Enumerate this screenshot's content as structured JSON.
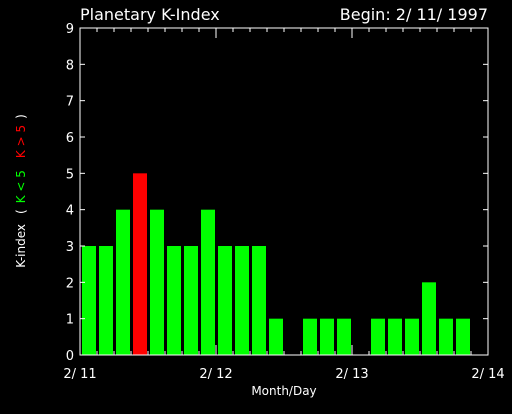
{
  "chart_data": {
    "type": "bar",
    "title": "Planetary K-Index",
    "subtitle": "Begin: 2/ 11/ 1997",
    "xlabel": "Month/Day",
    "ylabel": "K-index",
    "legend": {
      "open": "(",
      "green_label": "K < 5",
      "red_label": "K > 5",
      "close": ")"
    },
    "ylim": [
      0,
      9
    ],
    "yticks": [
      "0",
      "1",
      "2",
      "3",
      "4",
      "5",
      "6",
      "7",
      "8",
      "9"
    ],
    "xlim": [
      0,
      24
    ],
    "xticks": [
      {
        "label": "2/ 11",
        "pos": 0
      },
      {
        "label": "2/ 12",
        "pos": 8
      },
      {
        "label": "2/ 13",
        "pos": 16
      },
      {
        "label": "2/ 14",
        "pos": 24
      }
    ],
    "values": [
      3,
      3,
      4,
      5,
      4,
      3,
      3,
      4,
      3,
      3,
      3,
      1,
      0,
      1,
      1,
      1,
      0,
      1,
      1,
      1,
      2,
      1,
      1,
      0
    ],
    "threshold": 5,
    "colors": {
      "low": "#00ff00",
      "high": "#ff0000",
      "axis": "#ffffff",
      "background": "#000000"
    }
  }
}
